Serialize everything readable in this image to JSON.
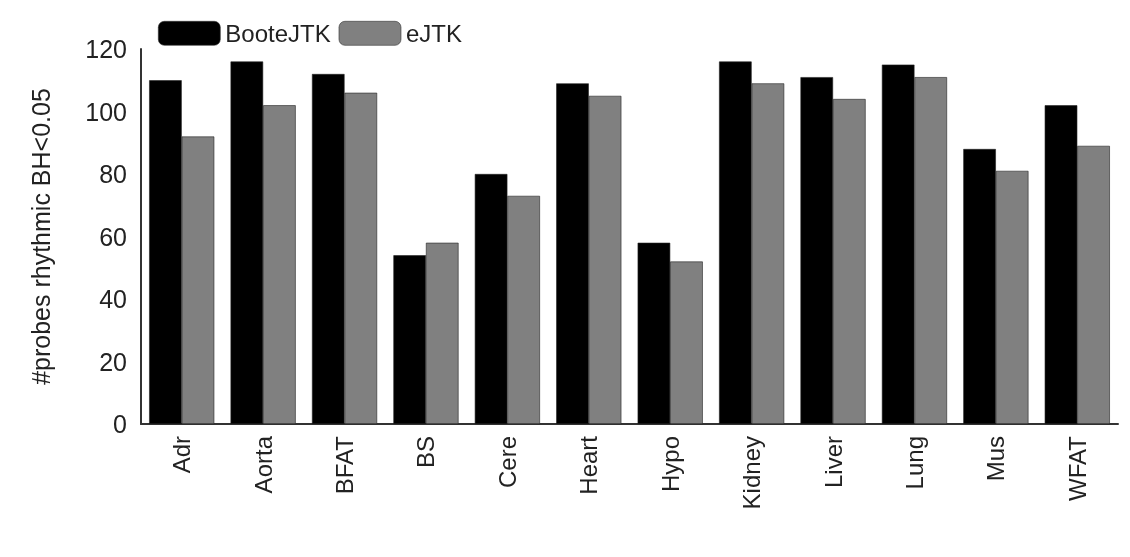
{
  "chart_data": {
    "type": "bar",
    "ylabel": "#probes rhythmic BH<0.05",
    "categories": [
      "Adr",
      "Aorta",
      "BFAT",
      "BS",
      "Cere",
      "Heart",
      "Hypo",
      "Kidney",
      "Liver",
      "Lung",
      "Mus",
      "WFAT"
    ],
    "series": [
      {
        "name": "BooteJTK",
        "color": "#000000",
        "values": [
          110,
          116,
          112,
          54,
          80,
          109,
          58,
          116,
          111,
          115,
          88,
          102
        ]
      },
      {
        "name": "eJTK",
        "color": "#808080",
        "values": [
          92,
          102,
          106,
          58,
          73,
          105,
          52,
          109,
          104,
          111,
          81,
          89
        ]
      }
    ],
    "ylim": [
      0,
      120
    ],
    "yticks": [
      0,
      20,
      40,
      60,
      80,
      100,
      120
    ],
    "grid": false,
    "legend": "top left"
  }
}
